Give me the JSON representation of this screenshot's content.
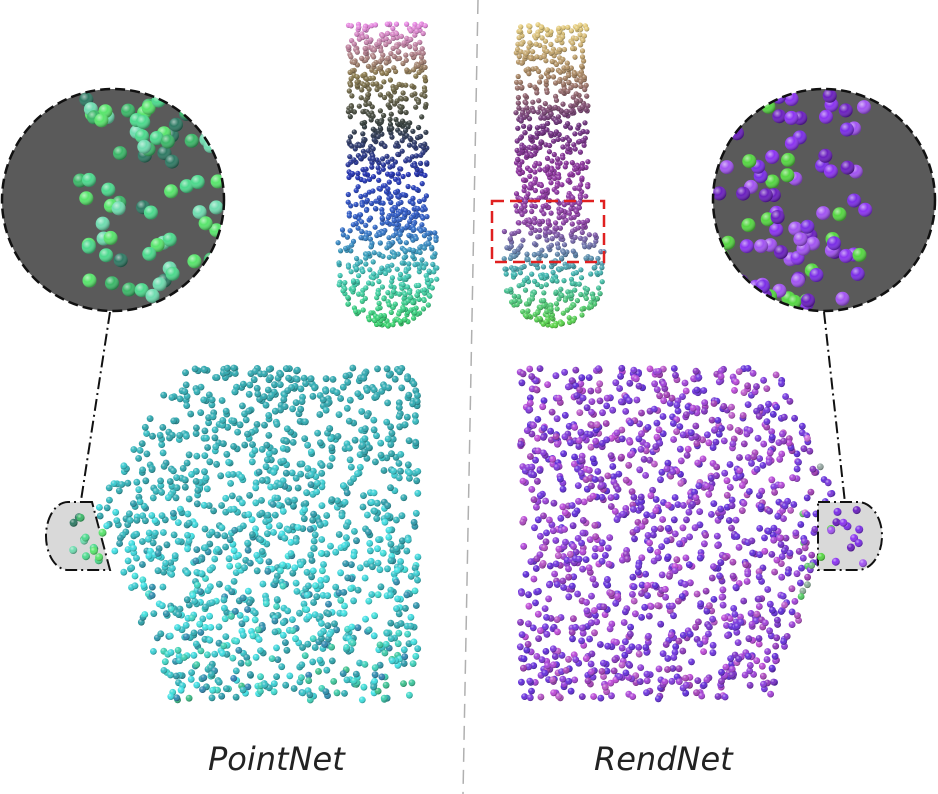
{
  "figure": {
    "panels": [
      {
        "caption": "PointNet",
        "tall_gradient": [
          "#e986e4",
          "#8b7a4a",
          "#2f3a38",
          "#1f2fb5",
          "#2c61c7",
          "#3cc9b6",
          "#35d46a"
        ],
        "box_colors": [
          "#6b42c9",
          "#3a4ec6",
          "#2ba0a8",
          "#3fe4e8",
          "#39b36a",
          "#2f8a58",
          "#e07fcf"
        ],
        "zoom_colors": [
          "#58e56c",
          "#4cd98d",
          "#6fdcb0",
          "#3bb768",
          "#2f7a64"
        ]
      },
      {
        "caption": "RendNet",
        "tall_gradient": [
          "#e8cf7c",
          "#a8855e",
          "#6a2c7c",
          "#8e2ea0",
          "#8c3fa6",
          "#3bb9b1",
          "#57d442"
        ],
        "box_colors": [
          "#c24ad8",
          "#9b3fd8",
          "#7236e0",
          "#5a28d8",
          "#a03bb4",
          "#e07fe8",
          "#4ccf5c"
        ],
        "zoom_colors": [
          "#8b33f1",
          "#7a2de6",
          "#a254f2",
          "#55d642",
          "#6a1fbf"
        ]
      }
    ],
    "colors": {
      "zoom_bg": "#5a5a5a",
      "tab_bg": "#d9d9d9",
      "divider": "#b0b0b0",
      "highlight": "#e02020"
    }
  }
}
